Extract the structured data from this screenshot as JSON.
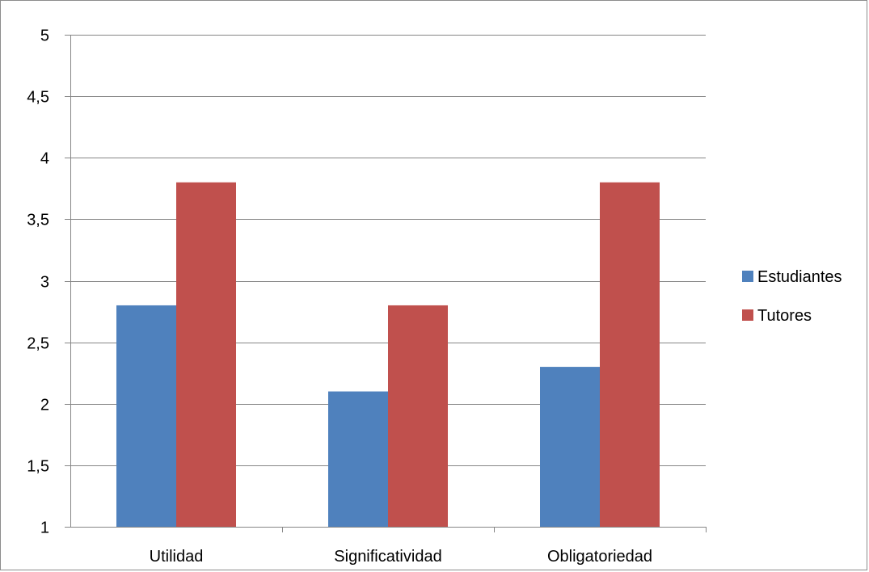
{
  "chart_data": {
    "type": "bar",
    "categories": [
      "Utilidad",
      "Significatividad",
      "Obligatoriedad"
    ],
    "series": [
      {
        "name": "Estudiantes",
        "values": [
          2.8,
          2.1,
          2.3
        ],
        "color": "#4f81bd"
      },
      {
        "name": "Tutores",
        "values": [
          3.8,
          2.8,
          3.8
        ],
        "color": "#c0504d"
      }
    ],
    "ylim": [
      1,
      5
    ],
    "yticks": [
      1,
      1.5,
      2,
      2.5,
      3,
      3.5,
      4,
      4.5,
      5
    ],
    "ytick_labels": [
      "1",
      "1,5",
      "2",
      "2,5",
      "3",
      "3,5",
      "4",
      "4,5",
      "5"
    ],
    "grid": true,
    "legend_position": "right"
  }
}
